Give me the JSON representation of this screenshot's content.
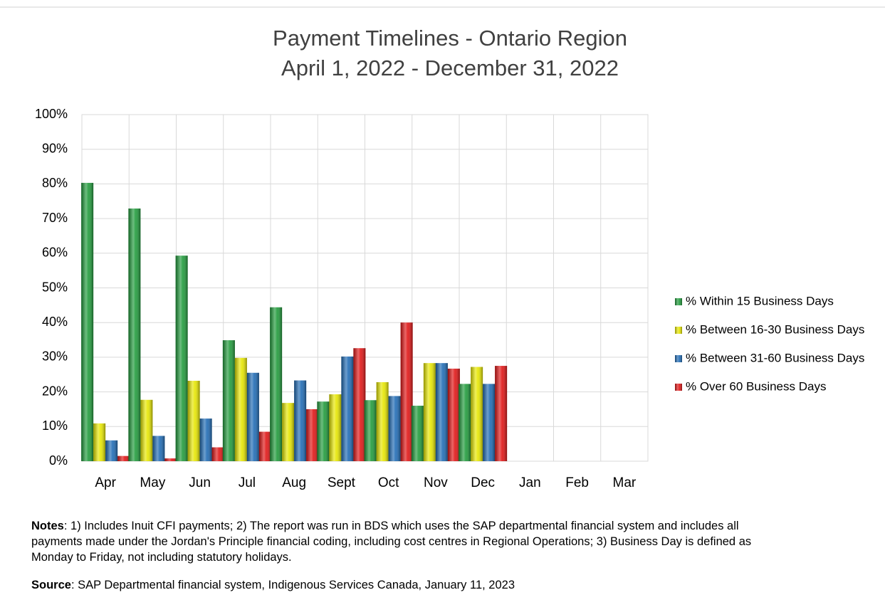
{
  "chart_data": {
    "type": "bar",
    "title": "Payment Timelines - Ontario Region",
    "subtitle": "April 1, 2022 - December 31, 2022",
    "categories": [
      "Apr",
      "May",
      "Jun",
      "Jul",
      "Aug",
      "Sept",
      "Oct",
      "Nov",
      "Dec",
      "Jan",
      "Feb",
      "Mar"
    ],
    "series": [
      {
        "name": "% Within 15 Business Days",
        "color": "#1f9a3a",
        "values": [
          80.3,
          72.9,
          59.3,
          34.9,
          44.4,
          17.2,
          17.6,
          16.0,
          22.3,
          null,
          null,
          null
        ]
      },
      {
        "name": "% Between 16-30 Business Days",
        "color": "#e6e600",
        "values": [
          10.9,
          17.7,
          23.2,
          29.8,
          16.8,
          19.3,
          22.8,
          28.3,
          27.2,
          null,
          null,
          null
        ]
      },
      {
        "name": "% Between 31-60 Business Days",
        "color": "#1e6ab4",
        "values": [
          6.0,
          7.3,
          12.3,
          25.5,
          23.3,
          30.2,
          18.8,
          28.3,
          22.3,
          null,
          null,
          null
        ]
      },
      {
        "name": "% Over 60 Business Days",
        "color": "#e01414",
        "values": [
          1.5,
          0.8,
          4.0,
          8.5,
          15.0,
          32.6,
          40.0,
          26.7,
          27.5,
          null,
          null,
          null
        ]
      }
    ],
    "ylim": [
      0,
      100
    ],
    "yticks": [
      {
        "value": 0,
        "label": "0%"
      },
      {
        "value": 10,
        "label": "10%"
      },
      {
        "value": 20,
        "label": "20%"
      },
      {
        "value": 30,
        "label": "30%"
      },
      {
        "value": 40,
        "label": "40%"
      },
      {
        "value": 50,
        "label": "50%"
      },
      {
        "value": 60,
        "label": "60%"
      },
      {
        "value": 70,
        "label": "70%"
      },
      {
        "value": 80,
        "label": "80%"
      },
      {
        "value": 90,
        "label": "90%"
      },
      {
        "value": 100,
        "label": "100%"
      }
    ],
    "grid": true,
    "legend": "right"
  },
  "notes": {
    "label": "Notes",
    "text": ": 1) Includes Inuit CFI payments; 2) The report was run in BDS which uses the SAP departmental financial system and includes all payments made under the Jordan's Principle financial coding, including cost centres in Regional Operations; 3) Business Day is defined as Monday to Friday, not including statutory holidays."
  },
  "source": {
    "label": "Source",
    "text": ": SAP Departmental financial system, Indigenous Services Canada, January 11, 2023"
  }
}
